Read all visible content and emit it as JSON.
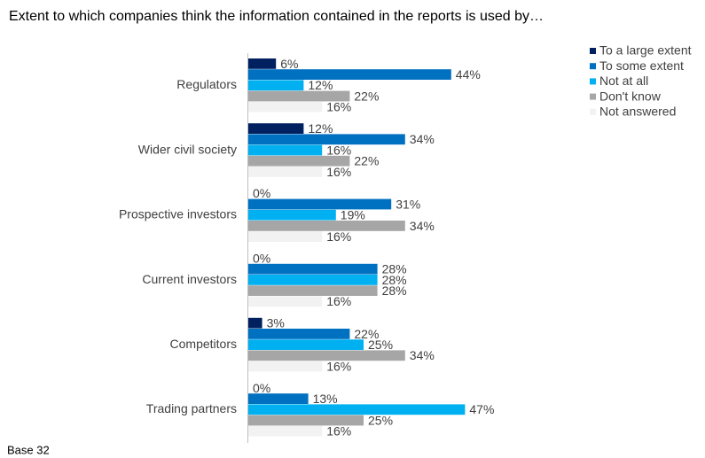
{
  "chart_data": {
    "type": "bar",
    "orientation": "horizontal",
    "title": "Extent to which companies think the information contained in the reports is used by…",
    "footnote": "Base 32",
    "categories": [
      "Regulators",
      "Wider civil society",
      "Prospective investors",
      "Current investors",
      "Competitors",
      "Trading partners"
    ],
    "series": [
      {
        "name": "To a large extent",
        "color": "#002060",
        "values": [
          6,
          12,
          0,
          0,
          3,
          0
        ],
        "value_labels": [
          "6%",
          "12%",
          "0%",
          "0%",
          "3%",
          "0%"
        ]
      },
      {
        "name": "To some extent",
        "color": "#0070c0",
        "values": [
          44,
          34,
          31,
          28,
          22,
          13
        ],
        "value_labels": [
          "44%",
          "34%",
          "31%",
          "28%",
          "22%",
          "13%"
        ]
      },
      {
        "name": "Not at all",
        "color": "#00b0f0",
        "values": [
          12,
          16,
          19,
          28,
          25,
          47
        ],
        "value_labels": [
          "12%",
          "16%",
          "19%",
          "28%",
          "25%",
          "47%"
        ]
      },
      {
        "name": "Don't know",
        "color": "#a6a6a6",
        "values": [
          22,
          22,
          34,
          28,
          34,
          25
        ],
        "value_labels": [
          "22%",
          "22%",
          "34%",
          "28%",
          "34%",
          "25%"
        ]
      },
      {
        "name": "Not answered",
        "color": "#f2f2f2",
        "values": [
          16,
          16,
          16,
          16,
          16,
          16
        ],
        "value_labels": [
          "16%",
          "16%",
          "16%",
          "16%",
          "16%",
          "16%"
        ]
      }
    ],
    "legend": "top-right"
  }
}
